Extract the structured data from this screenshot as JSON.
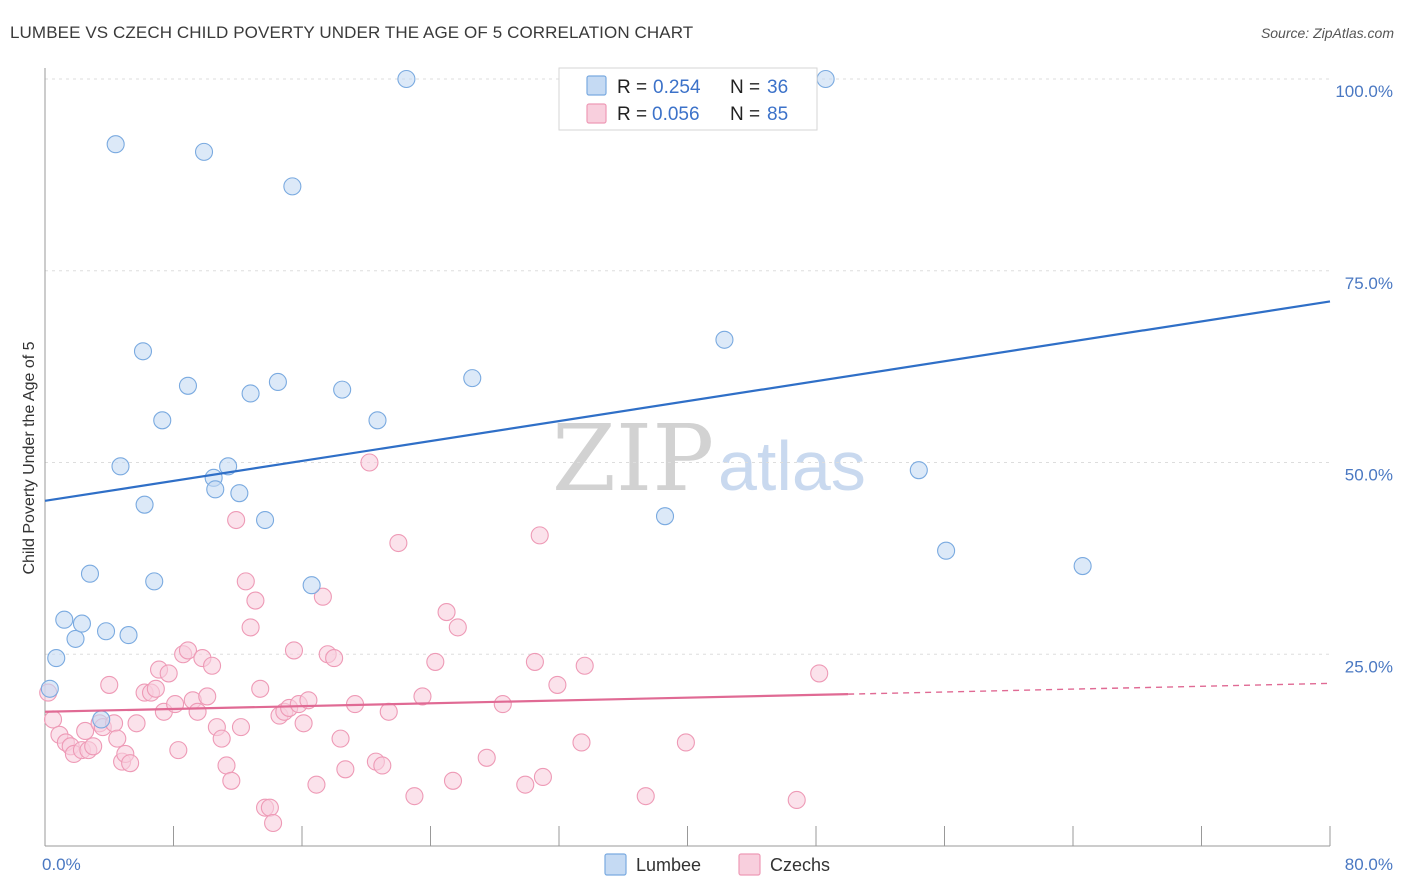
{
  "title": "LUMBEE VS CZECH CHILD POVERTY UNDER THE AGE OF 5 CORRELATION CHART",
  "source": "Source: ZipAtlas.com",
  "watermark": {
    "zip": "ZIP",
    "atlas": "atlas"
  },
  "colors": {
    "lumbee": "#7aaae0",
    "lumbee_fill": "#c5daf3",
    "lumbee_line": "#2f6fc7",
    "czech": "#ee9ab6",
    "czech_fill": "#f8cfdd",
    "czech_line": "#e06a94",
    "tick_label": "#4a78c2",
    "grid": "#dddddd"
  },
  "legend": {
    "rows": [
      {
        "r_label": "R =",
        "r_value": "0.254",
        "n_label": "N =",
        "n_value": "36"
      },
      {
        "r_label": "R =",
        "r_value": "0.056",
        "n_label": "N =",
        "n_value": "85"
      }
    ]
  },
  "chart_data": {
    "type": "scatter",
    "title": "LUMBEE VS CZECH CHILD POVERTY UNDER THE AGE OF 5 CORRELATION CHART",
    "xlabel": "",
    "ylabel": "Child Poverty Under the Age of 5",
    "xlim": [
      0,
      80
    ],
    "ylim": [
      0,
      100
    ],
    "x_tick_labels": [
      {
        "value": 0,
        "label": "0.0%"
      },
      {
        "value": 80,
        "label": "80.0%"
      }
    ],
    "y_tick_labels": [
      {
        "value": 25,
        "label": "25.0%"
      },
      {
        "value": 50,
        "label": "50.0%"
      },
      {
        "value": 75,
        "label": "75.0%"
      },
      {
        "value": 100,
        "label": "100.0%"
      }
    ],
    "grid": "horizontal dashed",
    "legend_position": "top-center",
    "series": [
      {
        "name": "Lumbee",
        "r": 0.254,
        "n": 36,
        "trend": {
          "x0": 0,
          "y0": 45.0,
          "x1": 80,
          "y1": 71.0
        },
        "points": [
          [
            0.3,
            20.5
          ],
          [
            0.7,
            24.5
          ],
          [
            1.2,
            29.5
          ],
          [
            1.9,
            27
          ],
          [
            2.3,
            29
          ],
          [
            2.8,
            35.5
          ],
          [
            3.8,
            28
          ],
          [
            3.5,
            16.5
          ],
          [
            4.4,
            91.5
          ],
          [
            4.7,
            49.5
          ],
          [
            5.2,
            27.5
          ],
          [
            6.1,
            64.5
          ],
          [
            6.2,
            44.5
          ],
          [
            6.8,
            34.5
          ],
          [
            7.3,
            55.5
          ],
          [
            8.9,
            60
          ],
          [
            9.9,
            90.5
          ],
          [
            10.5,
            48
          ],
          [
            10.6,
            46.5
          ],
          [
            11.4,
            49.5
          ],
          [
            12.1,
            46
          ],
          [
            12.8,
            59
          ],
          [
            13.7,
            42.5
          ],
          [
            14.5,
            60.5
          ],
          [
            15.4,
            86
          ],
          [
            16.6,
            34
          ],
          [
            18.5,
            59.5
          ],
          [
            20.7,
            55.5
          ],
          [
            22.5,
            100
          ],
          [
            26.6,
            61
          ],
          [
            38.6,
            43
          ],
          [
            42.3,
            66
          ],
          [
            48.6,
            100
          ],
          [
            54.4,
            49
          ],
          [
            56.1,
            38.5
          ],
          [
            64.6,
            36.5
          ]
        ]
      },
      {
        "name": "Czechs",
        "r": 0.056,
        "n": 85,
        "trend": {
          "x0": 0,
          "y0": 17.5,
          "x1": 50,
          "y1": 19.8,
          "dash_x1": 80,
          "dash_y1": 21.2
        },
        "points": [
          [
            0.2,
            20
          ],
          [
            0.5,
            16.5
          ],
          [
            0.9,
            14.5
          ],
          [
            1.3,
            13.5
          ],
          [
            1.6,
            13
          ],
          [
            1.8,
            12
          ],
          [
            2.3,
            12.5
          ],
          [
            2.5,
            15
          ],
          [
            2.7,
            12.5
          ],
          [
            3.0,
            13
          ],
          [
            3.4,
            16
          ],
          [
            3.6,
            15.5
          ],
          [
            4.0,
            21
          ],
          [
            4.3,
            16
          ],
          [
            4.5,
            14
          ],
          [
            4.8,
            11
          ],
          [
            5.0,
            12
          ],
          [
            5.3,
            10.8
          ],
          [
            5.7,
            16
          ],
          [
            6.2,
            20
          ],
          [
            6.6,
            20
          ],
          [
            6.9,
            20.5
          ],
          [
            7.1,
            23
          ],
          [
            7.4,
            17.5
          ],
          [
            7.7,
            22.5
          ],
          [
            8.1,
            18.5
          ],
          [
            8.3,
            12.5
          ],
          [
            8.6,
            25
          ],
          [
            8.9,
            25.5
          ],
          [
            9.2,
            19
          ],
          [
            9.5,
            17.5
          ],
          [
            9.8,
            24.5
          ],
          [
            10.1,
            19.5
          ],
          [
            10.4,
            23.5
          ],
          [
            10.7,
            15.5
          ],
          [
            11.0,
            14
          ],
          [
            11.3,
            10.5
          ],
          [
            11.6,
            8.5
          ],
          [
            11.9,
            42.5
          ],
          [
            12.2,
            15.5
          ],
          [
            12.5,
            34.5
          ],
          [
            12.8,
            28.5
          ],
          [
            13.1,
            32
          ],
          [
            13.4,
            20.5
          ],
          [
            13.7,
            5
          ],
          [
            14.0,
            5
          ],
          [
            14.2,
            3
          ],
          [
            14.6,
            17
          ],
          [
            14.9,
            17.5
          ],
          [
            15.2,
            18
          ],
          [
            15.5,
            25.5
          ],
          [
            15.8,
            18.5
          ],
          [
            16.1,
            16
          ],
          [
            16.4,
            19
          ],
          [
            16.9,
            8
          ],
          [
            17.3,
            32.5
          ],
          [
            17.6,
            25
          ],
          [
            18.0,
            24.5
          ],
          [
            18.4,
            14
          ],
          [
            18.7,
            10
          ],
          [
            19.3,
            18.5
          ],
          [
            20.2,
            50
          ],
          [
            20.6,
            11
          ],
          [
            21.0,
            10.5
          ],
          [
            21.4,
            17.5
          ],
          [
            22.0,
            39.5
          ],
          [
            23.0,
            6.5
          ],
          [
            23.5,
            19.5
          ],
          [
            24.3,
            24
          ],
          [
            25.0,
            30.5
          ],
          [
            25.4,
            8.5
          ],
          [
            25.7,
            28.5
          ],
          [
            27.5,
            11.5
          ],
          [
            28.5,
            18.5
          ],
          [
            29.9,
            8
          ],
          [
            30.5,
            24
          ],
          [
            30.8,
            40.5
          ],
          [
            31.0,
            9
          ],
          [
            31.9,
            21
          ],
          [
            33.4,
            13.5
          ],
          [
            33.6,
            23.5
          ],
          [
            37.4,
            6.5
          ],
          [
            39.9,
            13.5
          ],
          [
            46.8,
            6
          ],
          [
            48.2,
            22.5
          ]
        ]
      }
    ]
  }
}
